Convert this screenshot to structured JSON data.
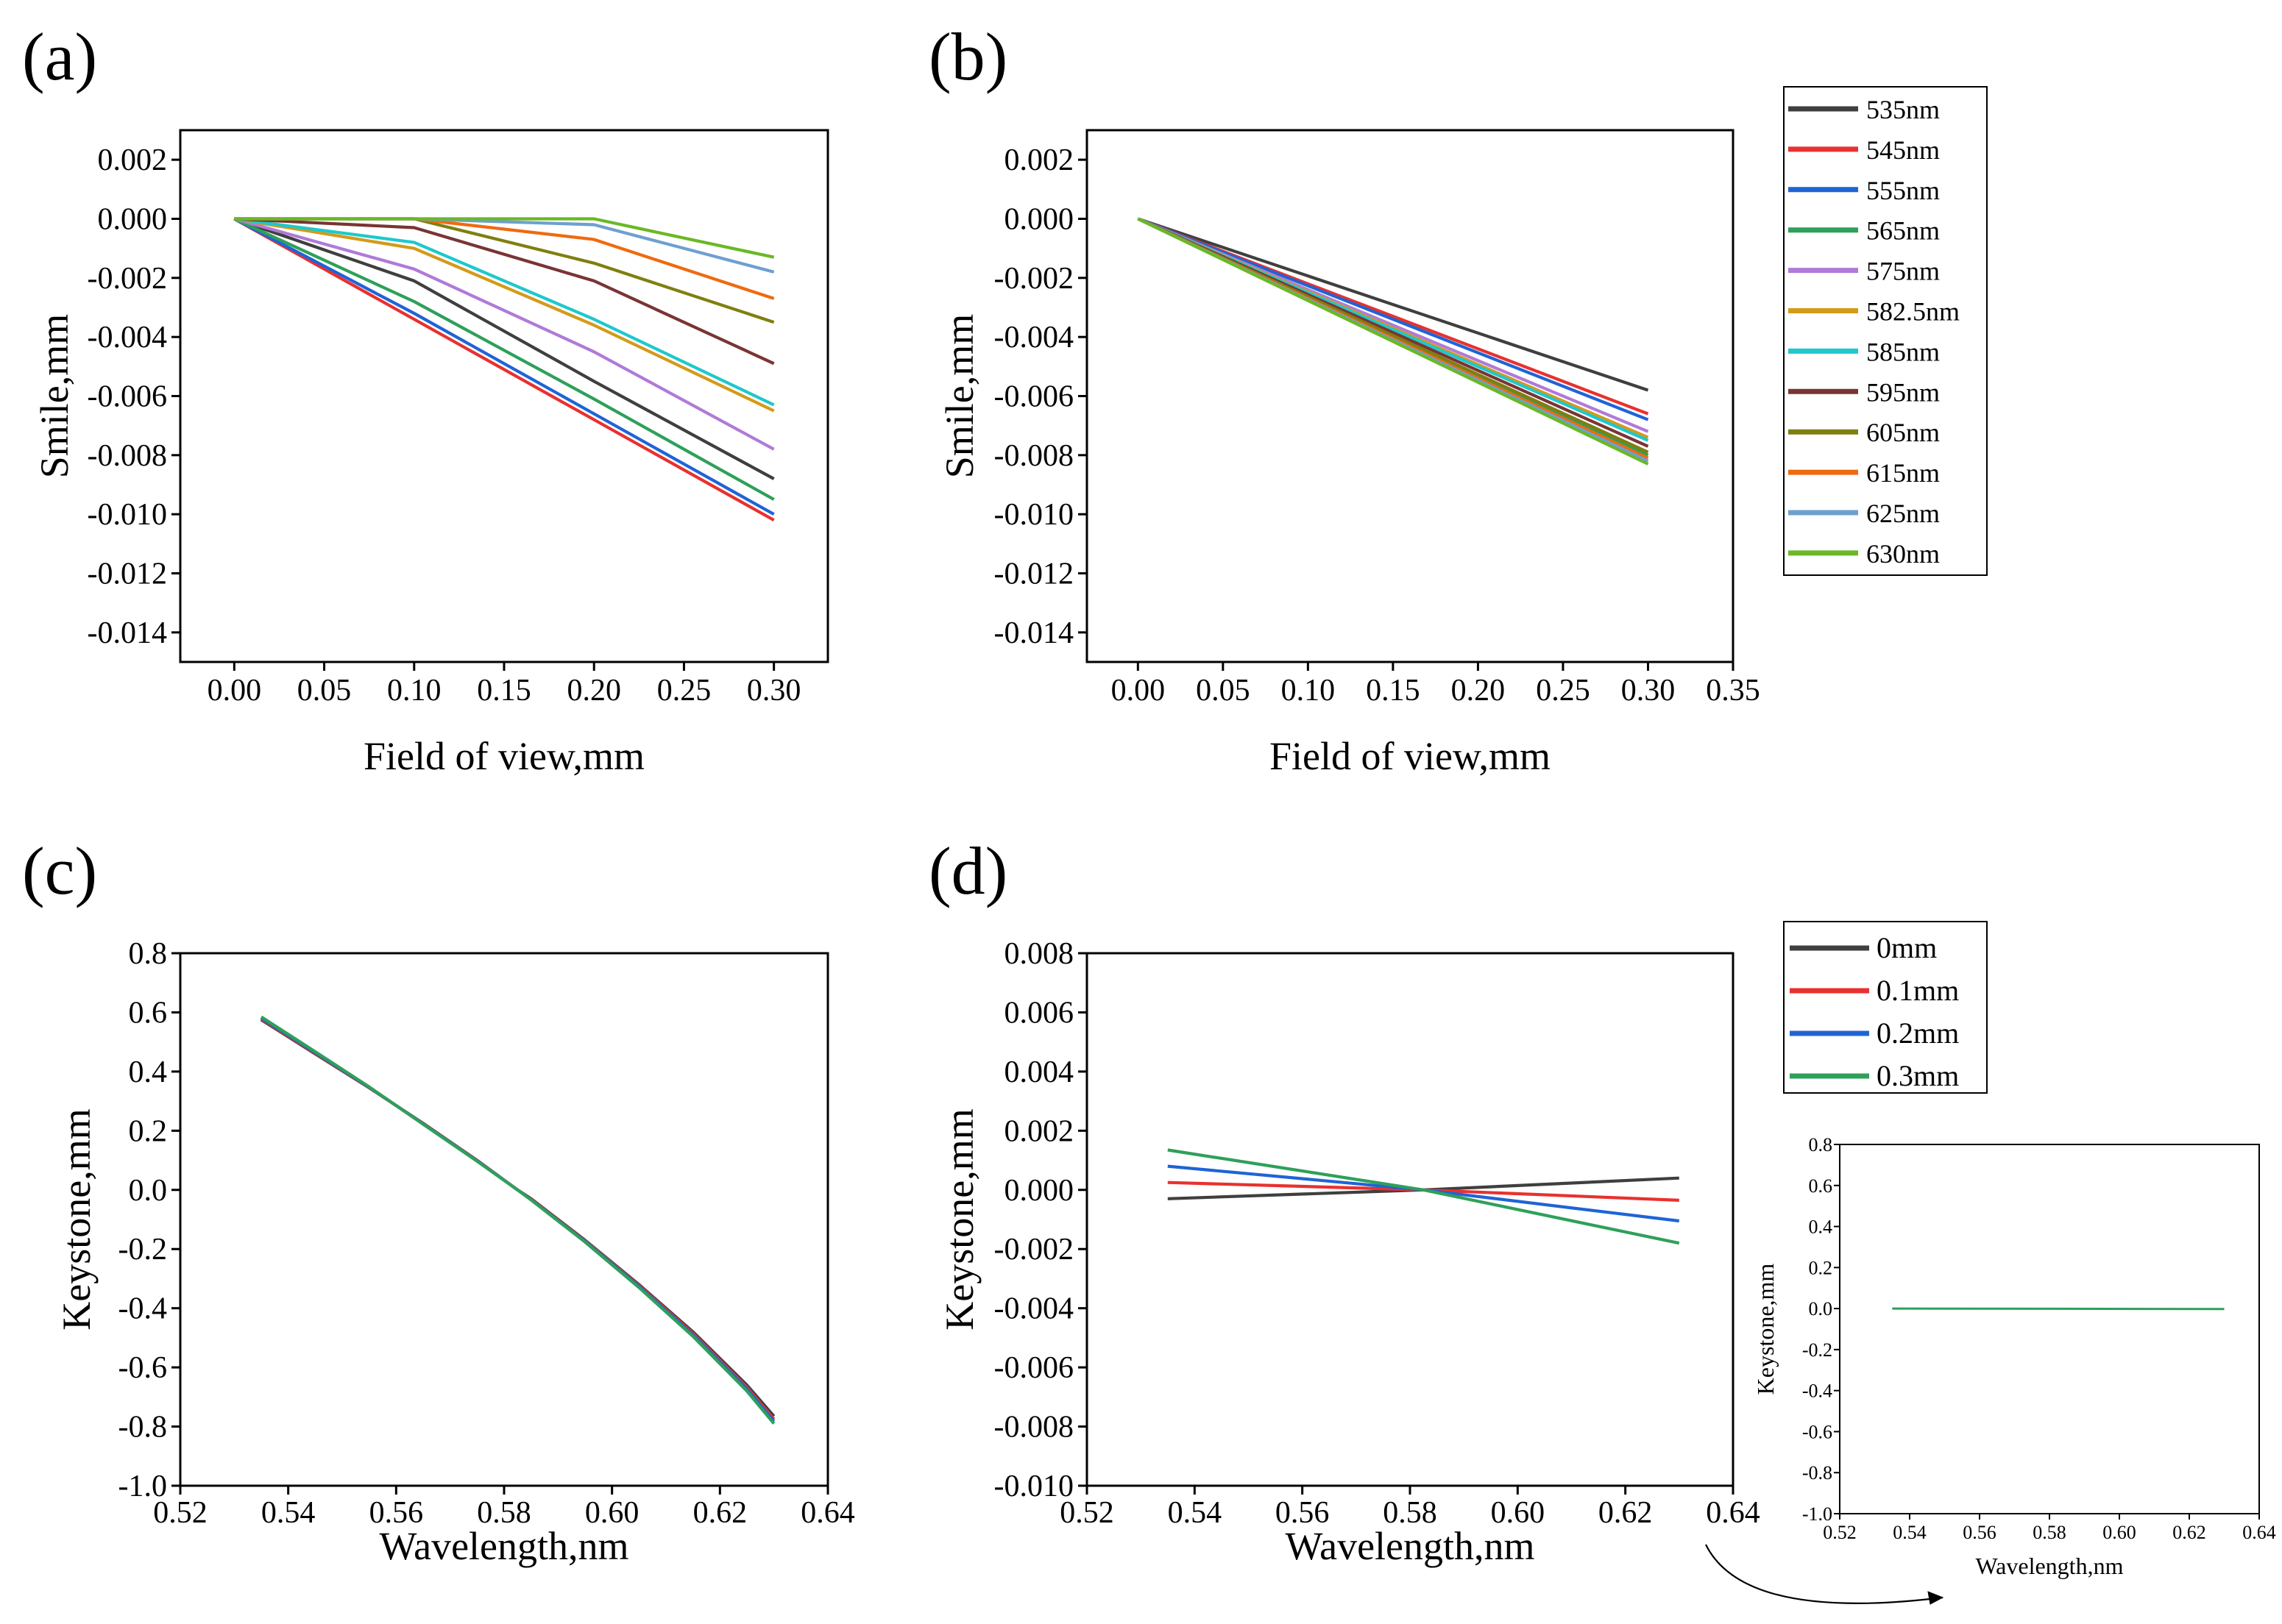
{
  "figure": {
    "colors": {
      "535nm": "#3f3f3f",
      "545nm": "#e8312f",
      "555nm": "#1f64d6",
      "565nm": "#2ea05a",
      "575nm": "#b07ad8",
      "582.5nm": "#d49a1a",
      "585nm": "#1ec8cc",
      "595nm": "#7a3434",
      "605nm": "#7f7f10",
      "615nm": "#ef6a10",
      "625nm": "#6f9fd0",
      "630nm": "#6ab825",
      "0mm": "#3f3f3f",
      "0.1mm": "#e8312f",
      "0.2mm": "#1f64d6",
      "0.3mm": "#2ea05a"
    }
  },
  "chart_data": [
    {
      "id": "a",
      "panel_label": "(a)",
      "type": "line",
      "xlabel": "Field of view,mm",
      "ylabel": "Smile,mm",
      "xlim": [
        -0.03,
        0.33
      ],
      "ylim": [
        -0.015,
        0.003
      ],
      "xticks": [
        "0.00",
        "0.05",
        "0.10",
        "0.15",
        "0.20",
        "0.25",
        "0.30"
      ],
      "xtick_values": [
        0,
        0.05,
        0.1,
        0.15,
        0.2,
        0.25,
        0.3
      ],
      "yticks": [
        "0.002",
        "0.000",
        "-0.002",
        "-0.004",
        "-0.006",
        "-0.008",
        "-0.010",
        "-0.012",
        "-0.014"
      ],
      "ytick_values": [
        0.002,
        0,
        -0.002,
        -0.004,
        -0.006,
        -0.008,
        -0.01,
        -0.012,
        -0.014
      ],
      "x": [
        0,
        0.1,
        0.2,
        0.3
      ],
      "series": [
        {
          "name": "535nm",
          "values": [
            0,
            -0.0021,
            -0.0055,
            -0.0088
          ]
        },
        {
          "name": "545nm",
          "values": [
            0,
            -0.0034,
            -0.0068,
            -0.0102
          ]
        },
        {
          "name": "555nm",
          "values": [
            0,
            -0.0032,
            -0.0066,
            -0.01
          ]
        },
        {
          "name": "565nm",
          "values": [
            0,
            -0.0028,
            -0.0061,
            -0.0095
          ]
        },
        {
          "name": "575nm",
          "values": [
            0,
            -0.0017,
            -0.0045,
            -0.0078
          ]
        },
        {
          "name": "582.5nm",
          "values": [
            0,
            -0.001,
            -0.0036,
            -0.0065
          ]
        },
        {
          "name": "585nm",
          "values": [
            0,
            -0.0008,
            -0.0034,
            -0.0063
          ]
        },
        {
          "name": "595nm",
          "values": [
            0,
            -0.0003,
            -0.0021,
            -0.0049
          ]
        },
        {
          "name": "605nm",
          "values": [
            0,
            0.0,
            -0.0015,
            -0.0035
          ]
        },
        {
          "name": "615nm",
          "values": [
            0,
            0.0,
            -0.0007,
            -0.0027
          ]
        },
        {
          "name": "625nm",
          "values": [
            0,
            0.0,
            -0.0002,
            -0.0018
          ]
        },
        {
          "name": "630nm",
          "values": [
            0,
            0.0,
            0.0,
            -0.0013
          ]
        }
      ]
    },
    {
      "id": "b",
      "panel_label": "(b)",
      "type": "line",
      "xlabel": "Field of view,mm",
      "ylabel": "Smile,mm",
      "xlim": [
        -0.03,
        0.35
      ],
      "ylim": [
        -0.015,
        0.003
      ],
      "xticks": [
        "0.00",
        "0.05",
        "0.10",
        "0.15",
        "0.20",
        "0.25",
        "0.30",
        "0.35"
      ],
      "xtick_values": [
        0,
        0.05,
        0.1,
        0.15,
        0.2,
        0.25,
        0.3,
        0.35
      ],
      "yticks": [
        "0.002",
        "0.000",
        "-0.002",
        "-0.004",
        "-0.006",
        "-0.008",
        "-0.010",
        "-0.012",
        "-0.014"
      ],
      "ytick_values": [
        0.002,
        0,
        -0.002,
        -0.004,
        -0.006,
        -0.008,
        -0.01,
        -0.012,
        -0.014
      ],
      "x": [
        0,
        0.3
      ],
      "series": [
        {
          "name": "535nm",
          "values": [
            0,
            -0.0058
          ]
        },
        {
          "name": "545nm",
          "values": [
            0,
            -0.0066
          ]
        },
        {
          "name": "555nm",
          "values": [
            0,
            -0.0068
          ]
        },
        {
          "name": "565nm",
          "values": [
            0,
            -0.008
          ]
        },
        {
          "name": "575nm",
          "values": [
            0,
            -0.0072
          ]
        },
        {
          "name": "582.5nm",
          "values": [
            0,
            -0.0074
          ]
        },
        {
          "name": "585nm",
          "values": [
            0,
            -0.0075
          ]
        },
        {
          "name": "595nm",
          "values": [
            0,
            -0.0077
          ]
        },
        {
          "name": "605nm",
          "values": [
            0,
            -0.0079
          ]
        },
        {
          "name": "615nm",
          "values": [
            0,
            -0.0081
          ]
        },
        {
          "name": "625nm",
          "values": [
            0,
            -0.0082
          ]
        },
        {
          "name": "630nm",
          "values": [
            0,
            -0.0083
          ]
        }
      ],
      "legend": [
        "535nm",
        "545nm",
        "555nm",
        "565nm",
        "575nm",
        "582.5nm",
        "585nm",
        "595nm",
        "605nm",
        "615nm",
        "625nm",
        "630nm"
      ]
    },
    {
      "id": "c",
      "panel_label": "(c)",
      "type": "line",
      "xlabel": "Wavelength,nm",
      "ylabel": "Keystone,mm",
      "xlim": [
        0.52,
        0.64
      ],
      "ylim": [
        -1.0,
        0.8
      ],
      "xticks": [
        "0.52",
        "0.54",
        "0.56",
        "0.58",
        "0.60",
        "0.62",
        "0.64"
      ],
      "xtick_values": [
        0.52,
        0.54,
        0.56,
        0.58,
        0.6,
        0.62,
        0.64
      ],
      "yticks": [
        "0.8",
        "0.6",
        "0.4",
        "0.2",
        "0.0",
        "-0.2",
        "-0.4",
        "-0.6",
        "-0.8",
        "-1.0"
      ],
      "ytick_values": [
        0.8,
        0.6,
        0.4,
        0.2,
        0,
        -0.2,
        -0.4,
        -0.6,
        -0.8,
        -1.0
      ],
      "x": [
        0.535,
        0.545,
        0.555,
        0.565,
        0.575,
        0.5825,
        0.585,
        0.595,
        0.605,
        0.615,
        0.625,
        0.63
      ],
      "series": [
        {
          "name": "0mm",
          "values": [
            0.575,
            0.46,
            0.345,
            0.225,
            0.1,
            0.0,
            -0.03,
            -0.17,
            -0.32,
            -0.48,
            -0.66,
            -0.765
          ]
        },
        {
          "name": "0.1mm",
          "values": [
            0.578,
            0.462,
            0.346,
            0.224,
            0.099,
            0.0,
            -0.032,
            -0.172,
            -0.323,
            -0.485,
            -0.667,
            -0.775
          ]
        },
        {
          "name": "0.2mm",
          "values": [
            0.581,
            0.464,
            0.347,
            0.223,
            0.098,
            0.0,
            -0.033,
            -0.174,
            -0.326,
            -0.49,
            -0.673,
            -0.782
          ]
        },
        {
          "name": "0.3mm",
          "values": [
            0.585,
            0.467,
            0.348,
            0.222,
            0.097,
            0.0,
            -0.034,
            -0.176,
            -0.33,
            -0.495,
            -0.68,
            -0.79
          ]
        }
      ]
    },
    {
      "id": "d",
      "panel_label": "(d)",
      "type": "line",
      "xlabel": "Wavelength,nm",
      "ylabel": "Keystone,mm",
      "xlim": [
        0.52,
        0.64
      ],
      "ylim": [
        -0.01,
        0.008
      ],
      "xticks": [
        "0.52",
        "0.54",
        "0.56",
        "0.58",
        "0.60",
        "0.62",
        "0.64"
      ],
      "xtick_values": [
        0.52,
        0.54,
        0.56,
        0.58,
        0.6,
        0.62,
        0.64
      ],
      "yticks": [
        "0.008",
        "0.006",
        "0.004",
        "0.002",
        "0.000",
        "-0.002",
        "-0.004",
        "-0.006",
        "-0.008",
        "-0.010"
      ],
      "ytick_values": [
        0.008,
        0.006,
        0.004,
        0.002,
        0,
        -0.002,
        -0.004,
        -0.006,
        -0.008,
        -0.01
      ],
      "x": [
        0.535,
        0.5825,
        0.63
      ],
      "series": [
        {
          "name": "0mm",
          "values": [
            -0.0003,
            0.0,
            0.0004
          ]
        },
        {
          "name": "0.1mm",
          "values": [
            0.00025,
            0.0,
            -0.00035
          ]
        },
        {
          "name": "0.2mm",
          "values": [
            0.0008,
            0.0,
            -0.00105
          ]
        },
        {
          "name": "0.3mm",
          "values": [
            0.00135,
            0.0,
            -0.0018
          ]
        }
      ],
      "legend": [
        "0mm",
        "0.1mm",
        "0.2mm",
        "0.3mm"
      ]
    },
    {
      "id": "d_inset",
      "panel_label": "",
      "type": "line",
      "xlabel": "Wavelength,nm",
      "ylabel": "Keystone,mm",
      "xlim": [
        0.52,
        0.64
      ],
      "ylim": [
        -1.0,
        0.8
      ],
      "xticks": [
        "0.52",
        "0.54",
        "0.56",
        "0.58",
        "0.60",
        "0.62",
        "0.64"
      ],
      "xtick_values": [
        0.52,
        0.54,
        0.56,
        0.58,
        0.6,
        0.62,
        0.64
      ],
      "yticks": [
        "0.8",
        "0.6",
        "0.4",
        "0.2",
        "0.0",
        "-0.2",
        "-0.4",
        "-0.6",
        "-0.8",
        "-1.0"
      ],
      "ytick_values": [
        0.8,
        0.6,
        0.4,
        0.2,
        0,
        -0.2,
        -0.4,
        -0.6,
        -0.8,
        -1.0
      ],
      "x": [
        0.535,
        0.63
      ],
      "series": [
        {
          "name": "0.3mm",
          "values": [
            0.0,
            -0.002
          ]
        }
      ]
    }
  ]
}
